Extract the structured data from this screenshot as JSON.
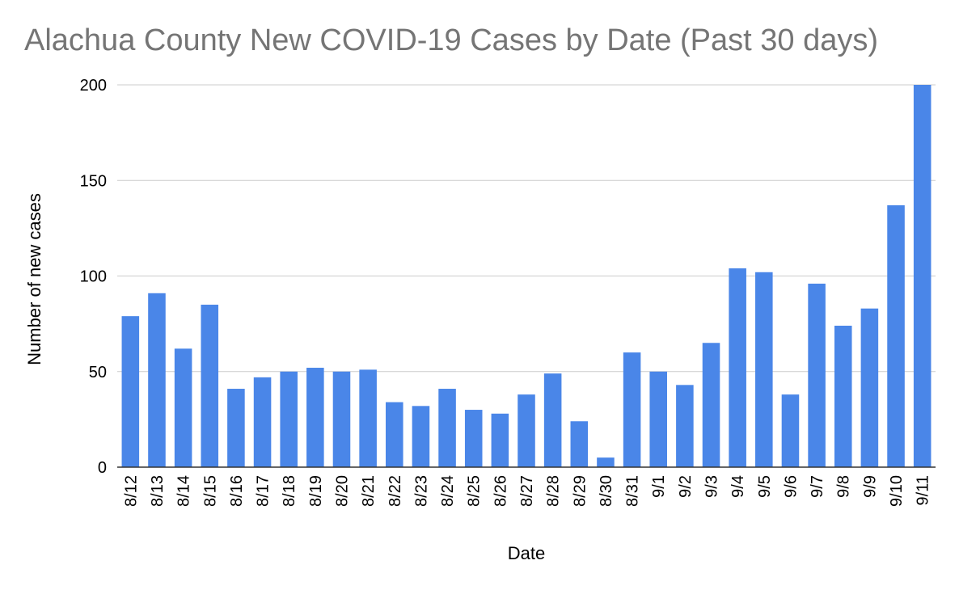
{
  "chart_data": {
    "type": "bar",
    "title": "Alachua County New COVID-19 Cases by Date (Past 30 days)",
    "xlabel": "Date",
    "ylabel": "Number of new cases",
    "ylim": [
      0,
      200
    ],
    "yticks": [
      0,
      50,
      100,
      150,
      200
    ],
    "grid": true,
    "legend": "none",
    "bar_color": "#4a86e8",
    "categories": [
      "8/12",
      "8/13",
      "8/14",
      "8/15",
      "8/16",
      "8/17",
      "8/18",
      "8/19",
      "8/20",
      "8/21",
      "8/22",
      "8/23",
      "8/24",
      "8/25",
      "8/26",
      "8/27",
      "8/28",
      "8/29",
      "8/30",
      "8/31",
      "9/1",
      "9/2",
      "9/3",
      "9/4",
      "9/5",
      "9/6",
      "9/7",
      "9/8",
      "9/9",
      "9/10",
      "9/11"
    ],
    "values": [
      79,
      91,
      62,
      85,
      41,
      47,
      50,
      52,
      50,
      51,
      34,
      32,
      41,
      30,
      28,
      38,
      49,
      24,
      5,
      60,
      50,
      43,
      65,
      104,
      102,
      38,
      96,
      74,
      83,
      137,
      200
    ]
  }
}
